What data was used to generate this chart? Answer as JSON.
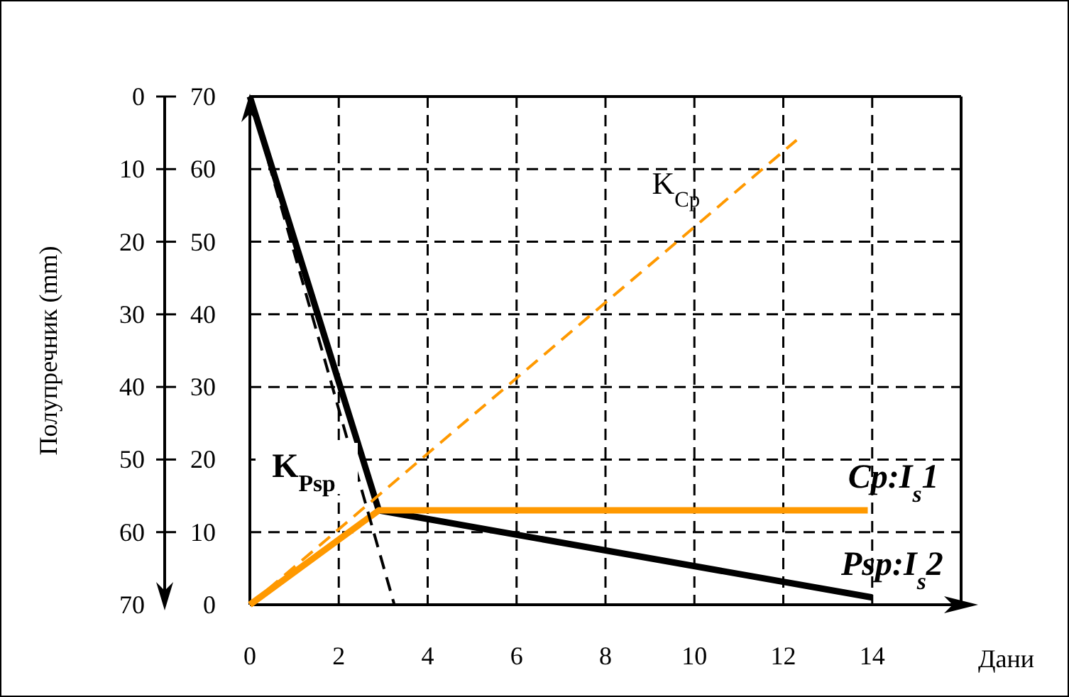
{
  "chart_data": {
    "type": "line",
    "xlabel": "Дани",
    "y2label": "Полупречник (mm)",
    "xlim": [
      0,
      16
    ],
    "xticks": [
      0,
      2,
      4,
      6,
      8,
      10,
      12,
      14
    ],
    "ylim": [
      0,
      70
    ],
    "yticks": [
      0,
      10,
      20,
      30,
      40,
      50,
      60,
      70
    ],
    "y2lim": [
      70,
      0
    ],
    "y2ticks": [
      0,
      10,
      20,
      30,
      40,
      50,
      60,
      70
    ],
    "grid": true,
    "marker": "none",
    "series": [
      {
        "name": "Psp:I$_{s}$2",
        "color": "#000000",
        "line_style": "solid",
        "x": [
          0,
          2.9,
          14
        ],
        "values": [
          70,
          13,
          1
        ]
      },
      {
        "name": "Cp:I$_{s}$1",
        "color": "#ff9900",
        "line_style": "solid",
        "x": [
          0,
          2.9,
          13.9
        ],
        "values": [
          0,
          13,
          13
        ]
      },
      {
        "name": "K$_{Cp}$",
        "color": "#ff9900",
        "line_style": "dashed",
        "x": [
          0,
          12.3
        ],
        "values": [
          0,
          64
        ]
      },
      {
        "name": "K$_{Psp}$",
        "color": "#000000",
        "line_style": "dashed",
        "x": [
          0,
          3.25
        ],
        "values": [
          70,
          0
        ]
      }
    ]
  }
}
